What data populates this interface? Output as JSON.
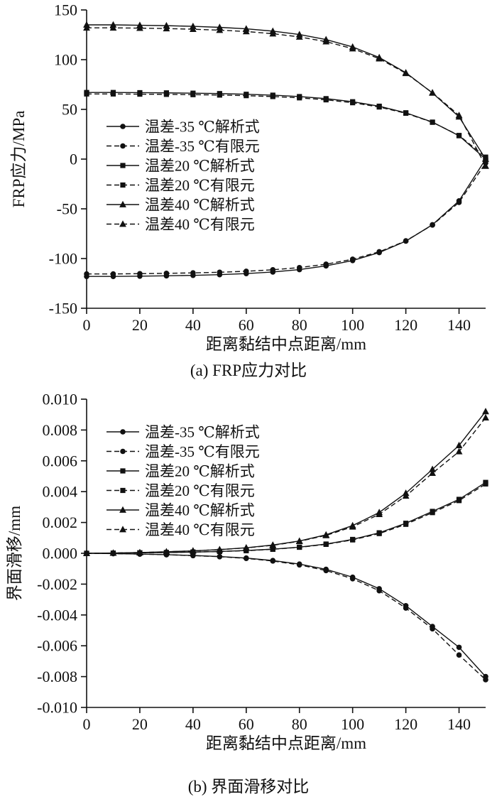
{
  "figure": {
    "captions": {
      "a": "(a) FRP应力对比",
      "b": "(b) 界面滑移对比"
    },
    "line_color": "#111111",
    "background": "#ffffff"
  },
  "chart_data": [
    {
      "type": "line",
      "title": "",
      "xlabel": "距离黏结中点距离/mm",
      "ylabel": "FRP应力/MPa",
      "xlim": [
        0,
        150
      ],
      "ylim": [
        -150,
        150
      ],
      "xticks": [
        0,
        20,
        40,
        60,
        80,
        100,
        120,
        140
      ],
      "yticks": [
        150,
        100,
        50,
        0,
        -50,
        -100,
        -150
      ],
      "tick_decimals": 0,
      "grid": false,
      "legend_position": "inside-center-left",
      "x": [
        0,
        10,
        20,
        30,
        40,
        50,
        60,
        70,
        80,
        90,
        100,
        110,
        120,
        130,
        140,
        150
      ],
      "series": [
        {
          "name": "温差-35 ℃解析式",
          "marker": "circle",
          "line": "solid",
          "values": [
            -118,
            -118,
            -117.7,
            -117.4,
            -116.9,
            -116.2,
            -115.1,
            -113.5,
            -111.1,
            -107.4,
            -102,
            -94,
            -82.5,
            -66,
            -42,
            0
          ]
        },
        {
          "name": "温差-35 ℃有限元",
          "marker": "circle",
          "line": "dashed",
          "values": [
            -115.5,
            -115.5,
            -115.2,
            -114.9,
            -114.4,
            -113.8,
            -112.8,
            -111.3,
            -109.1,
            -105.7,
            -100.7,
            -93.2,
            -82.2,
            -66.3,
            -43.5,
            -4
          ]
        },
        {
          "name": "温差20 ℃解析式",
          "marker": "square",
          "line": "solid",
          "values": [
            67,
            67,
            66.8,
            66.6,
            66.3,
            65.9,
            65.2,
            64.3,
            62.9,
            60.8,
            57.7,
            53.2,
            46.6,
            37.2,
            23.5,
            0
          ]
        },
        {
          "name": "温差20 ℃有限元",
          "marker": "square",
          "line": "dashed",
          "values": [
            65.5,
            65.5,
            65.3,
            65.1,
            64.8,
            64.4,
            63.8,
            62.9,
            61.6,
            59.6,
            56.7,
            52.4,
            46.1,
            37,
            23.8,
            2
          ]
        },
        {
          "name": "温差40 ℃解析式",
          "marker": "triangle",
          "line": "solid",
          "values": [
            135,
            135,
            134.6,
            134.2,
            133.5,
            132.5,
            131,
            128.7,
            125.3,
            120.2,
            112.8,
            102.2,
            86.9,
            66.5,
            42.5,
            0
          ]
        },
        {
          "name": "温差40 ℃有限元",
          "marker": "triangle",
          "line": "dashed",
          "values": [
            132,
            132,
            131.7,
            131.3,
            130.6,
            129.7,
            128.3,
            126.1,
            122.9,
            118.1,
            111.1,
            101,
            86.3,
            66.8,
            44,
            -7
          ]
        }
      ]
    },
    {
      "type": "line",
      "title": "",
      "xlabel": "距离黏结中点距离/mm",
      "ylabel": "界面滑移/mm",
      "xlim": [
        0,
        150
      ],
      "ylim": [
        -0.01,
        0.01
      ],
      "xticks": [
        0,
        20,
        40,
        60,
        80,
        100,
        120,
        140
      ],
      "yticks": [
        0.01,
        0.008,
        0.006,
        0.004,
        0.002,
        0.0,
        -0.002,
        -0.004,
        -0.006,
        -0.008,
        -0.01
      ],
      "tick_decimals": 3,
      "grid": false,
      "legend_position": "inside-top-left",
      "x": [
        0,
        10,
        20,
        30,
        40,
        50,
        60,
        70,
        80,
        90,
        100,
        110,
        120,
        130,
        140,
        150
      ],
      "series": [
        {
          "name": "温差-35 ℃解析式",
          "marker": "circle",
          "line": "solid",
          "values": [
            0,
            -2e-05,
            -5e-05,
            -9e-05,
            -0.00014,
            -0.00021,
            -0.00031,
            -0.00047,
            -0.0007,
            -0.00104,
            -0.00155,
            -0.0023,
            -0.0034,
            -0.00475,
            -0.0061,
            -0.008
          ]
        },
        {
          "name": "温差-35 ℃有限元",
          "marker": "circle",
          "line": "dashed",
          "values": [
            0,
            -2e-05,
            -5e-05,
            -9e-05,
            -0.00015,
            -0.00022,
            -0.00033,
            -0.0005,
            -0.00075,
            -0.00112,
            -0.00165,
            -0.00243,
            -0.00355,
            -0.0049,
            -0.0066,
            -0.0082
          ]
        },
        {
          "name": "温差20 ℃解析式",
          "marker": "square",
          "line": "solid",
          "values": [
            0,
            1e-05,
            3e-05,
            5e-05,
            8e-05,
            0.00012,
            0.00018,
            0.00027,
            0.0004,
            0.0006,
            0.0009,
            0.00133,
            0.00195,
            0.00272,
            0.0035,
            0.0046
          ]
        },
        {
          "name": "温差20 ℃有限元",
          "marker": "square",
          "line": "dashed",
          "values": [
            0,
            1e-05,
            3e-05,
            5e-05,
            8e-05,
            0.00012,
            0.00017,
            0.00026,
            0.00039,
            0.00058,
            0.00087,
            0.00128,
            0.00188,
            0.00264,
            0.00342,
            0.0045
          ]
        },
        {
          "name": "温差40 ℃解析式",
          "marker": "triangle",
          "line": "solid",
          "values": [
            0,
            2e-05,
            5e-05,
            0.0001,
            0.00016,
            0.00024,
            0.00036,
            0.00054,
            0.0008,
            0.0012,
            0.0018,
            0.00265,
            0.0039,
            0.00545,
            0.007,
            0.0092
          ]
        },
        {
          "name": "温差40 ℃有限元",
          "marker": "triangle",
          "line": "dashed",
          "values": [
            0,
            2e-05,
            5e-05,
            0.0001,
            0.00016,
            0.00024,
            0.00035,
            0.00052,
            0.00078,
            0.00116,
            0.00172,
            0.00253,
            0.00372,
            0.0052,
            0.0066,
            0.0088
          ]
        }
      ]
    }
  ]
}
